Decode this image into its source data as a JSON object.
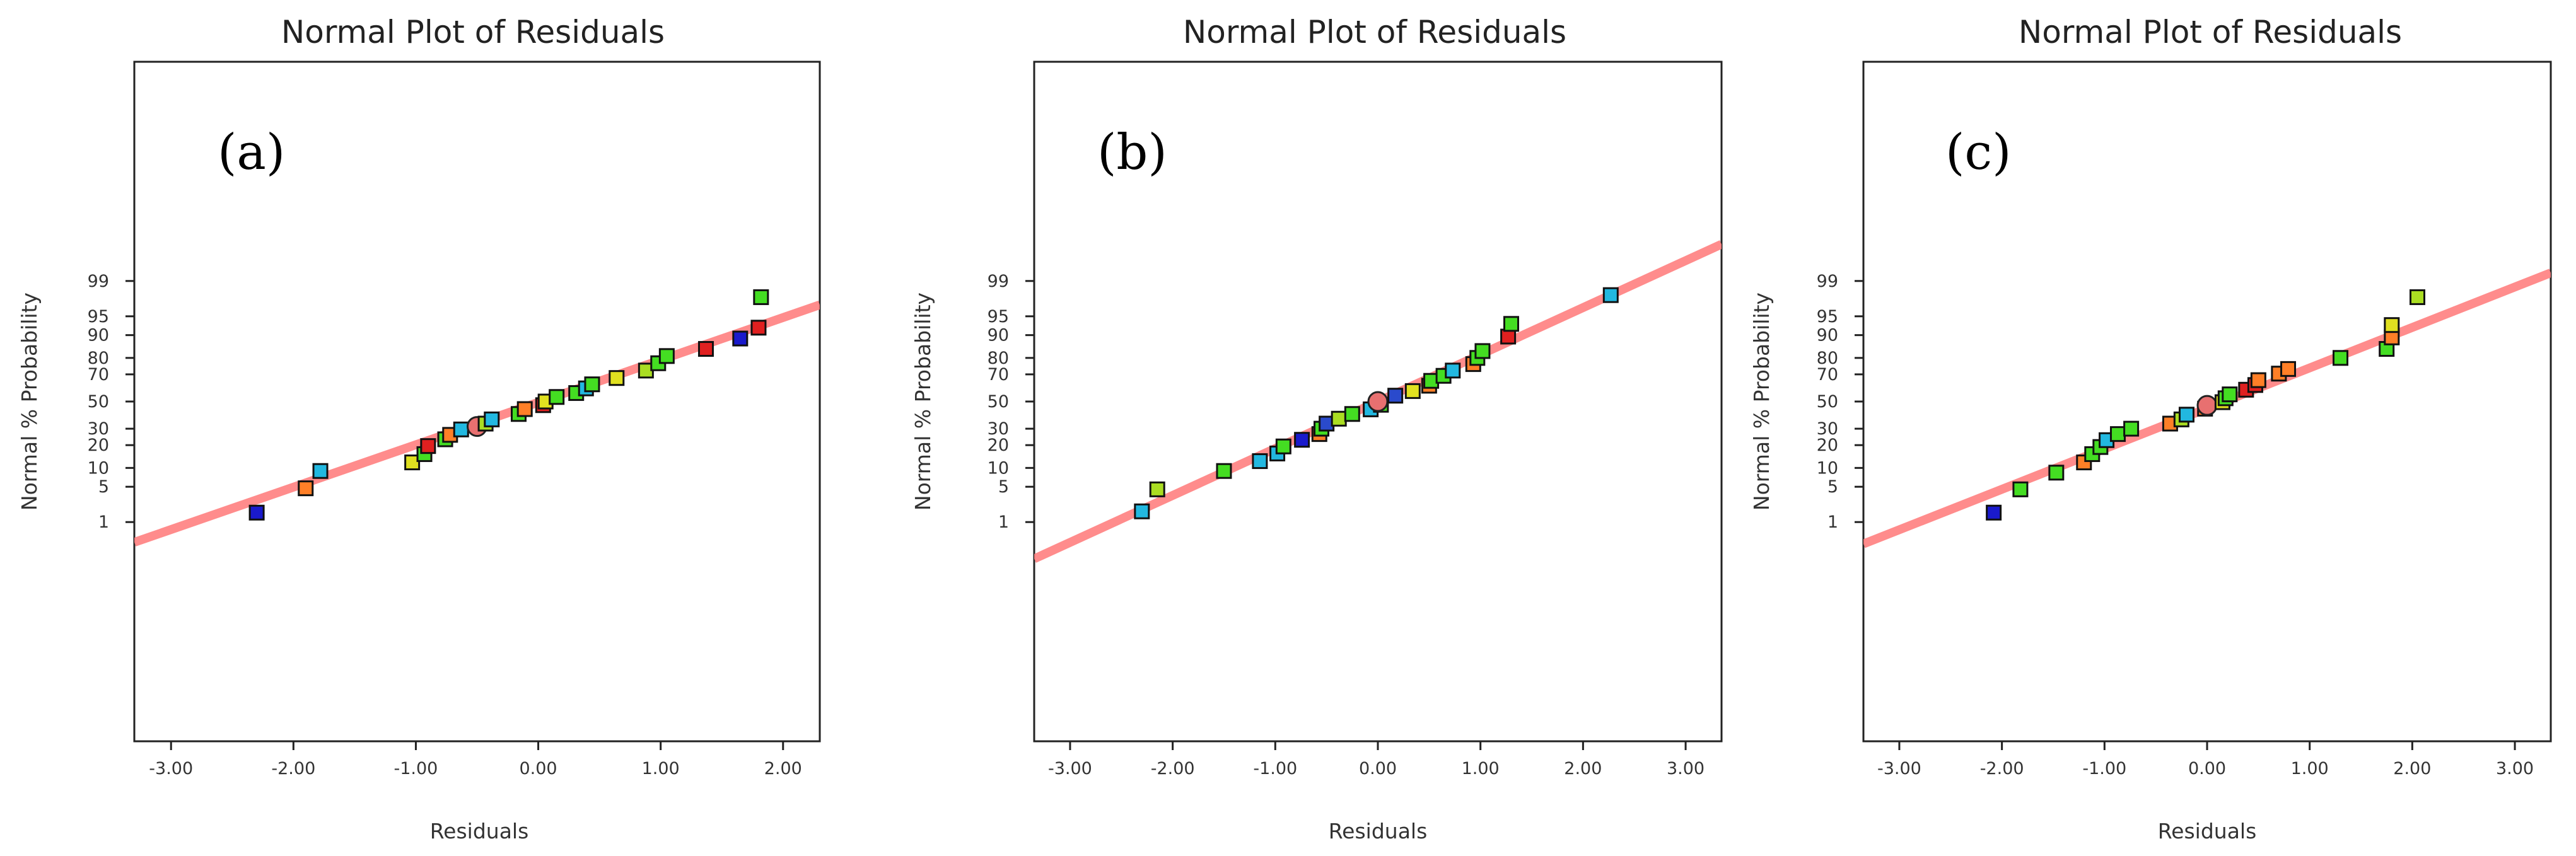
{
  "chart_data": [
    {
      "type": "scatter",
      "panel_label": "(a)",
      "title": "Normal Plot of Residuals",
      "xlabel": "Residuals",
      "ylabel": "Normal % Probability",
      "xlim": [
        -3.3,
        2.3
      ],
      "x_ticks": [
        "-3.00",
        "-2.00",
        "-1.00",
        "0.00",
        "1.00",
        "2.00"
      ],
      "y_ticks": [
        "1",
        "5",
        "10",
        "20",
        "30",
        "50",
        "70",
        "80",
        "90",
        "95",
        "99"
      ],
      "fit_line": {
        "x": [
          -3.3,
          2.3
        ],
        "y": [
          0.33,
          96.9
        ],
        "color": "#ff8080"
      },
      "points": [
        {
          "x": -2.3,
          "y": 1.6,
          "color": "#1a1acc"
        },
        {
          "x": -1.9,
          "y": 4.7,
          "color": "#ff7f27"
        },
        {
          "x": -1.78,
          "y": 9,
          "color": "#22b8e0"
        },
        {
          "x": -1.03,
          "y": 12,
          "color": "#e0e020"
        },
        {
          "x": -0.93,
          "y": 15.5,
          "color": "#44dd22"
        },
        {
          "x": -0.9,
          "y": 19.5,
          "color": "#e02020"
        },
        {
          "x": -0.76,
          "y": 23.3,
          "color": "#44dd22"
        },
        {
          "x": -0.72,
          "y": 26,
          "color": "#ff7f27"
        },
        {
          "x": -0.63,
          "y": 29.5,
          "color": "#22b8e0"
        },
        {
          "x": -0.5,
          "y": 31.5,
          "color": "#ff8080"
        },
        {
          "x": -0.43,
          "y": 33.5,
          "color": "#aadd22"
        },
        {
          "x": -0.38,
          "y": 36.5,
          "color": "#22b8e0"
        },
        {
          "x": -0.16,
          "y": 40.5,
          "color": "#44dd22"
        },
        {
          "x": -0.11,
          "y": 44.2,
          "color": "#ff7f27"
        },
        {
          "x": 0.04,
          "y": 47.2,
          "color": "#e02020"
        },
        {
          "x": 0.06,
          "y": 50,
          "color": "#e0e020"
        },
        {
          "x": 0.15,
          "y": 53.5,
          "color": "#44dd22"
        },
        {
          "x": 0.31,
          "y": 56.5,
          "color": "#44dd22"
        },
        {
          "x": 0.39,
          "y": 60,
          "color": "#22b8e0"
        },
        {
          "x": 0.44,
          "y": 63,
          "color": "#44dd22"
        },
        {
          "x": 0.64,
          "y": 67.5,
          "color": "#e0e020"
        },
        {
          "x": 0.88,
          "y": 72.5,
          "color": "#aadd22"
        },
        {
          "x": 0.98,
          "y": 77,
          "color": "#44dd22"
        },
        {
          "x": 1.05,
          "y": 81,
          "color": "#44dd22"
        },
        {
          "x": 1.37,
          "y": 84.5,
          "color": "#e02020"
        },
        {
          "x": 1.65,
          "y": 88.8,
          "color": "#1a1acc"
        },
        {
          "x": 1.8,
          "y": 92.3,
          "color": "#e02020"
        },
        {
          "x": 1.82,
          "y": 97.8,
          "color": "#44dd22"
        }
      ]
    },
    {
      "type": "scatter",
      "panel_label": "(b)",
      "title": "Normal Plot of Residuals",
      "xlabel": "Residuals",
      "ylabel": "Normal % Probability",
      "xlim": [
        -3.35,
        3.35
      ],
      "x_ticks": [
        "-3.00",
        "-2.00",
        "-1.00",
        "0.00",
        "1.00",
        "2.00",
        "3.00"
      ],
      "y_ticks": [
        "1",
        "5",
        "10",
        "20",
        "30",
        "50",
        "70",
        "80",
        "90",
        "95",
        "99"
      ],
      "fit_line": {
        "x": [
          -3.35,
          3.35
        ],
        "y": [
          0.12,
          99.88
        ],
        "color": "#ff8080"
      },
      "points": [
        {
          "x": -2.3,
          "y": 1.7,
          "color": "#22b8e0"
        },
        {
          "x": -2.15,
          "y": 4.5,
          "color": "#aadd22"
        },
        {
          "x": -1.5,
          "y": 9,
          "color": "#44dd22"
        },
        {
          "x": -1.15,
          "y": 12.5,
          "color": "#22b8e0"
        },
        {
          "x": -0.98,
          "y": 15.8,
          "color": "#22b8e0"
        },
        {
          "x": -0.92,
          "y": 19.3,
          "color": "#44dd22"
        },
        {
          "x": -0.74,
          "y": 23,
          "color": "#1a1acc"
        },
        {
          "x": -0.57,
          "y": 26.5,
          "color": "#ff7f27"
        },
        {
          "x": -0.55,
          "y": 30,
          "color": "#44dd22"
        },
        {
          "x": -0.5,
          "y": 33.5,
          "color": "#2a4acc"
        },
        {
          "x": -0.38,
          "y": 37,
          "color": "#aadd22"
        },
        {
          "x": -0.25,
          "y": 40.5,
          "color": "#44dd22"
        },
        {
          "x": -0.07,
          "y": 44,
          "color": "#22b8e0"
        },
        {
          "x": 0.03,
          "y": 47.5,
          "color": "#44dd22"
        },
        {
          "x": 0.0,
          "y": 50,
          "color": "#ff8080"
        },
        {
          "x": 0.17,
          "y": 54.5,
          "color": "#2a4acc"
        },
        {
          "x": 0.34,
          "y": 58,
          "color": "#e0e020"
        },
        {
          "x": 0.5,
          "y": 62,
          "color": "#ff7f27"
        },
        {
          "x": 0.52,
          "y": 65.5,
          "color": "#44dd22"
        },
        {
          "x": 0.64,
          "y": 69,
          "color": "#44dd22"
        },
        {
          "x": 0.73,
          "y": 72.5,
          "color": "#22b8e0"
        },
        {
          "x": 0.93,
          "y": 76.5,
          "color": "#ff7f27"
        },
        {
          "x": 0.97,
          "y": 80,
          "color": "#44dd22"
        },
        {
          "x": 1.02,
          "y": 83.5,
          "color": "#44dd22"
        },
        {
          "x": 1.27,
          "y": 89.5,
          "color": "#e02020"
        },
        {
          "x": 1.3,
          "y": 93.3,
          "color": "#44dd22"
        },
        {
          "x": 2.27,
          "y": 98,
          "color": "#22b8e0"
        }
      ]
    },
    {
      "type": "scatter",
      "panel_label": "(c)",
      "title": "Normal Plot of Residuals",
      "xlabel": "Residuals",
      "ylabel": "Normal % Probability",
      "xlim": [
        -3.35,
        3.35
      ],
      "x_ticks": [
        "-3.00",
        "-2.00",
        "-1.00",
        "0.00",
        "1.00",
        "2.00",
        "3.00"
      ],
      "y_ticks": [
        "1",
        "5",
        "10",
        "20",
        "30",
        "50",
        "70",
        "80",
        "90",
        "95",
        "99"
      ],
      "fit_line": {
        "x": [
          -3.35,
          3.35
        ],
        "y": [
          0.3,
          99.35
        ],
        "color": "#ff8080"
      },
      "points": [
        {
          "x": -2.08,
          "y": 1.6,
          "color": "#1a1acc"
        },
        {
          "x": -1.82,
          "y": 4.5,
          "color": "#44dd22"
        },
        {
          "x": -1.47,
          "y": 8.5,
          "color": "#44dd22"
        },
        {
          "x": -1.2,
          "y": 12,
          "color": "#ff7f27"
        },
        {
          "x": -1.12,
          "y": 15.5,
          "color": "#44dd22"
        },
        {
          "x": -1.04,
          "y": 19,
          "color": "#44dd22"
        },
        {
          "x": -0.98,
          "y": 22.8,
          "color": "#22b8e0"
        },
        {
          "x": -0.87,
          "y": 26.5,
          "color": "#44dd22"
        },
        {
          "x": -0.74,
          "y": 30,
          "color": "#44dd22"
        },
        {
          "x": -0.36,
          "y": 33.5,
          "color": "#ff7f27"
        },
        {
          "x": -0.25,
          "y": 36.5,
          "color": "#aadd22"
        },
        {
          "x": -0.2,
          "y": 40,
          "color": "#22b8e0"
        },
        {
          "x": -0.02,
          "y": 44.5,
          "color": "#ff7f27"
        },
        {
          "x": 0.0,
          "y": 47,
          "color": "#ff8080"
        },
        {
          "x": 0.15,
          "y": 49.5,
          "color": "#e0e020"
        },
        {
          "x": 0.18,
          "y": 52.5,
          "color": "#44dd22"
        },
        {
          "x": 0.22,
          "y": 55.5,
          "color": "#44dd22"
        },
        {
          "x": 0.38,
          "y": 59,
          "color": "#e02020"
        },
        {
          "x": 0.47,
          "y": 62.5,
          "color": "#e02020"
        },
        {
          "x": 0.5,
          "y": 66,
          "color": "#ff7f27"
        },
        {
          "x": 0.7,
          "y": 70.5,
          "color": "#ff7f27"
        },
        {
          "x": 0.79,
          "y": 73.5,
          "color": "#ff7f27"
        },
        {
          "x": 1.3,
          "y": 80,
          "color": "#44dd22"
        },
        {
          "x": 1.75,
          "y": 84.5,
          "color": "#44dd22"
        },
        {
          "x": 1.8,
          "y": 89.2,
          "color": "#ff7f27"
        },
        {
          "x": 1.8,
          "y": 93,
          "color": "#e0e020"
        },
        {
          "x": 2.05,
          "y": 97.8,
          "color": "#aadd22"
        }
      ]
    }
  ]
}
